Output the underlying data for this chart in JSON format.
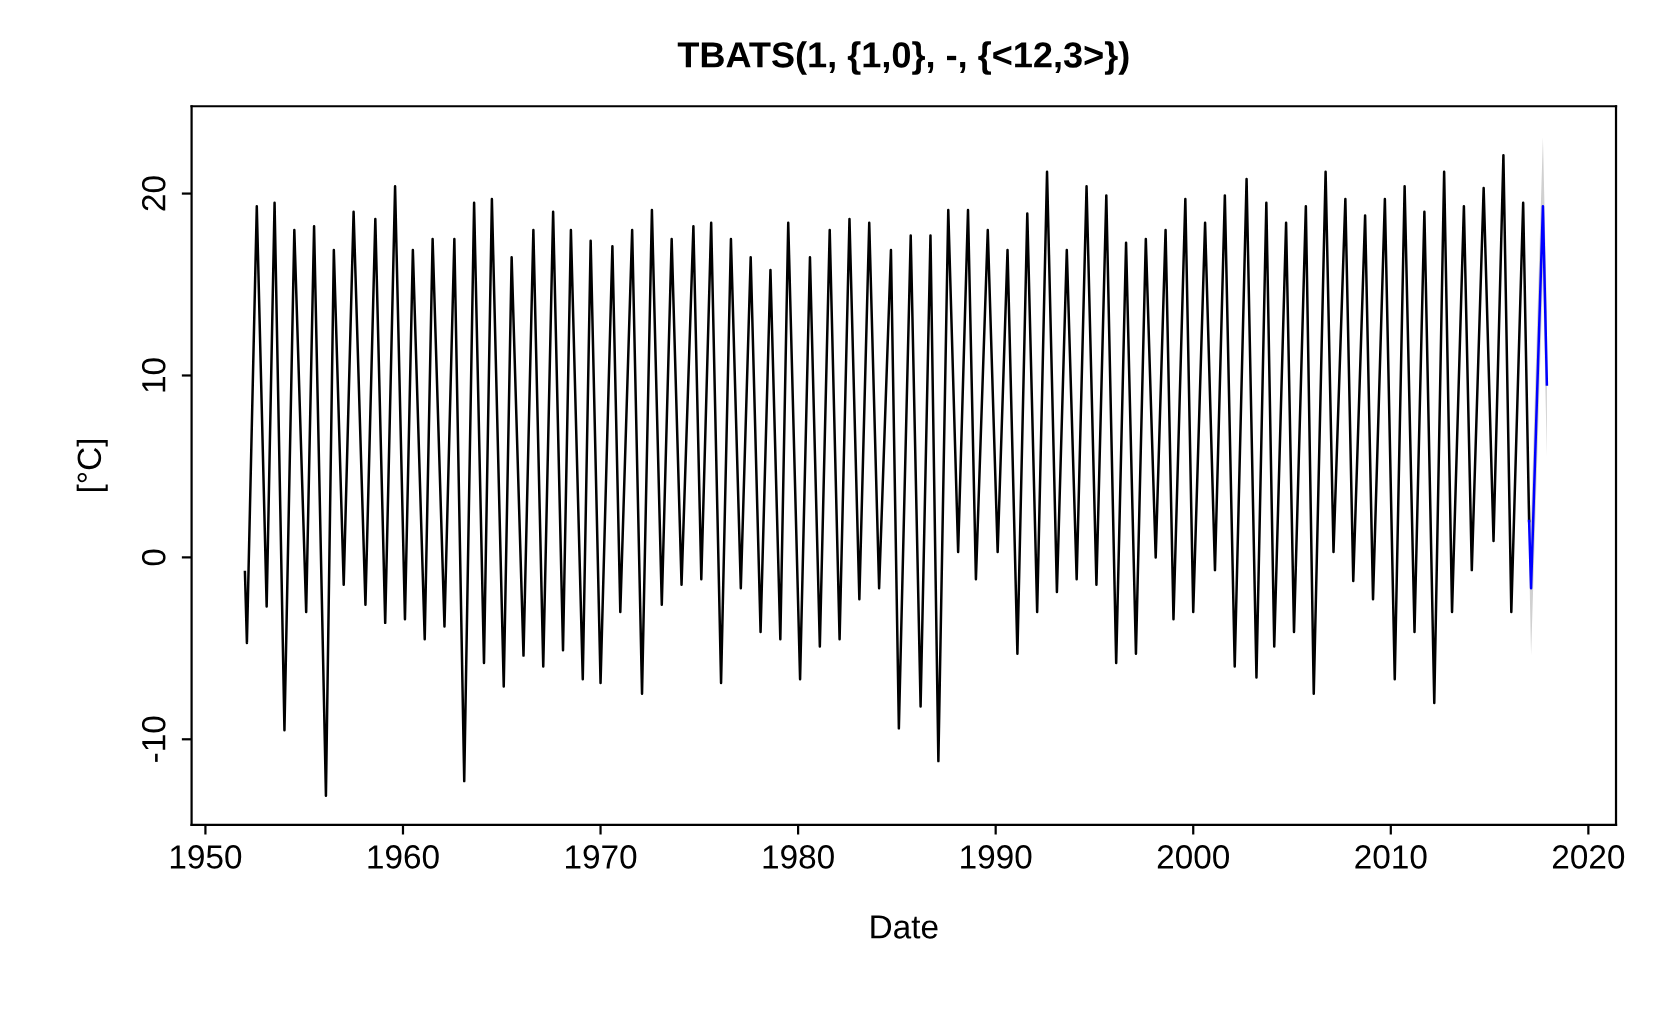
{
  "chart_data": {
    "type": "line",
    "title": "TBATS(1, {1,0}, -, {<12,3>})",
    "xlabel": "Date",
    "ylabel": "[°C]",
    "xlim": [
      1949.3,
      2021.4
    ],
    "xticks": [
      1950,
      1960,
      1970,
      1980,
      1990,
      2000,
      2010,
      2020
    ],
    "ylim": [
      -14.7,
      24.8
    ],
    "yticks": [
      -10,
      0,
      10,
      20
    ],
    "grid": false,
    "legend": false,
    "line_style": "solid",
    "marker": "none",
    "series": [
      {
        "color": "#000000",
        "x": [
          1952.0,
          1952.1,
          1952.6,
          1953.1,
          1953.5,
          1954.0,
          1954.5,
          1955.1,
          1955.5,
          1956.1,
          1956.5,
          1957.0,
          1957.5,
          1958.1,
          1958.6,
          1959.1,
          1959.6,
          1960.1,
          1960.5,
          1961.1,
          1961.5,
          1962.1,
          1962.6,
          1963.1,
          1963.6,
          1964.1,
          1964.5,
          1965.1,
          1965.5,
          1966.1,
          1966.6,
          1967.1,
          1967.6,
          1968.1,
          1968.5,
          1969.1,
          1969.5,
          1970.0,
          1970.6,
          1971.0,
          1971.6,
          1972.1,
          1972.6,
          1973.1,
          1973.6,
          1974.1,
          1974.7,
          1975.1,
          1975.6,
          1976.1,
          1976.6,
          1977.1,
          1977.6,
          1978.1,
          1978.6,
          1979.1,
          1979.5,
          1980.1,
          1980.6,
          1981.1,
          1981.6,
          1982.1,
          1982.6,
          1983.1,
          1983.6,
          1984.1,
          1984.7,
          1985.1,
          1985.7,
          1986.2,
          1986.7,
          1987.1,
          1987.6,
          1988.1,
          1988.6,
          1989.0,
          1989.6,
          1990.1,
          1990.6,
          1991.1,
          1991.6,
          1992.1,
          1992.6,
          1993.1,
          1993.6,
          1994.1,
          1994.6,
          1995.1,
          1995.6,
          1996.1,
          1996.6,
          1997.1,
          1997.6,
          1998.1,
          1998.6,
          1999.0,
          1999.6,
          2000.0,
          2000.6,
          2001.1,
          2001.6,
          2002.1,
          2002.7,
          2003.2,
          2003.7,
          2004.1,
          2004.7,
          2005.1,
          2005.7,
          2006.1,
          2006.7,
          2007.1,
          2007.7,
          2008.1,
          2008.7,
          2009.1,
          2009.7,
          2010.2,
          2010.7,
          2011.2,
          2011.7,
          2012.2,
          2012.7,
          2013.1,
          2013.7,
          2014.1,
          2014.7,
          2015.2,
          2015.7,
          2016.1,
          2016.7,
          2017.0
        ],
        "values": [
          -0.8,
          -4.7,
          19.3,
          -2.7,
          19.5,
          -9.5,
          18.0,
          -3.0,
          18.2,
          -13.1,
          16.9,
          -1.5,
          19.0,
          -2.6,
          18.6,
          -3.6,
          20.4,
          -3.4,
          16.9,
          -4.5,
          17.5,
          -3.8,
          17.5,
          -12.3,
          19.5,
          -5.8,
          19.7,
          -7.1,
          16.5,
          -5.4,
          18.0,
          -6.0,
          19.0,
          -5.1,
          18.0,
          -6.7,
          17.4,
          -6.9,
          17.1,
          -3.0,
          18.0,
          -7.5,
          19.1,
          -2.6,
          17.5,
          -1.5,
          18.2,
          -1.2,
          18.4,
          -6.9,
          17.5,
          -1.7,
          16.5,
          -4.1,
          15.8,
          -4.5,
          18.4,
          -6.7,
          16.5,
          -4.9,
          18.0,
          -4.5,
          18.6,
          -2.3,
          18.4,
          -1.7,
          16.9,
          -9.4,
          17.7,
          -8.2,
          17.7,
          -11.2,
          19.1,
          0.3,
          19.1,
          -1.2,
          18.0,
          0.3,
          16.9,
          -5.3,
          18.9,
          -3.0,
          21.2,
          -1.9,
          16.9,
          -1.2,
          20.4,
          -1.5,
          19.9,
          -5.8,
          17.3,
          -5.3,
          17.5,
          0.0,
          18.0,
          -3.4,
          19.7,
          -3.0,
          18.4,
          -0.7,
          19.9,
          -6.0,
          20.8,
          -6.6,
          19.5,
          -4.9,
          18.4,
          -4.1,
          19.3,
          -7.5,
          21.2,
          0.3,
          19.7,
          -1.3,
          18.8,
          -2.3,
          19.7,
          -6.7,
          20.4,
          -4.1,
          19.0,
          -8.0,
          21.2,
          -3.0,
          19.3,
          -0.7,
          20.3,
          0.9,
          22.1,
          -3.0,
          19.5,
          2.0
        ]
      },
      {
        "color": "#0000ff",
        "x": [
          2017.0,
          2017.1,
          2017.7,
          2017.9
        ],
        "values": [
          2.0,
          -1.7,
          19.3,
          9.5
        ],
        "lower": [
          0.0,
          -5.4,
          15.5,
          5.5
        ],
        "upper": [
          4.0,
          2.0,
          23.1,
          13.5
        ]
      }
    ]
  }
}
